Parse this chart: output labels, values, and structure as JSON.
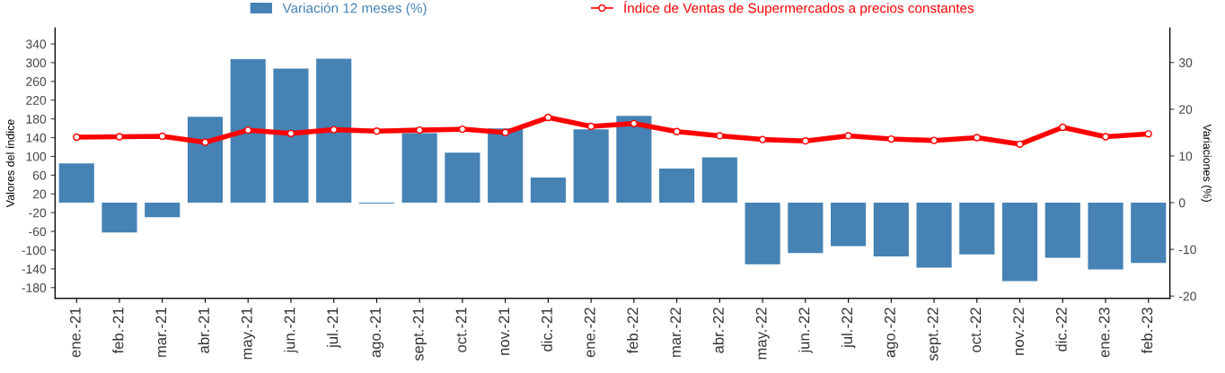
{
  "chart_data": {
    "type": "bar",
    "categories": [
      "ene.-21",
      "feb.-21",
      "mar.-21",
      "abr.-21",
      "may.-21",
      "jun.-21",
      "jul.-21",
      "ago.-21",
      "sept.-21",
      "oct.-21",
      "nov.-21",
      "dic.-21",
      "ene.-22",
      "feb.-22",
      "mar.-22",
      "abr.-22",
      "may.-22",
      "jun.-22",
      "jul.-22",
      "ago.-22",
      "sept.-22",
      "oct.-22",
      "nov.-22",
      "dic.-22",
      "ene.-23",
      "feb.-23"
    ],
    "series": [
      {
        "name": "Variación 12 meses (%)",
        "axis": "y2",
        "color": "#4682b4",
        "values": [
          8.4,
          -6.4,
          -3.1,
          18.4,
          30.7,
          28.7,
          30.8,
          -0.2,
          14.9,
          10.7,
          15.9,
          5.4,
          15.7,
          18.6,
          7.3,
          9.7,
          -13.2,
          -10.8,
          -9.3,
          -11.5,
          -13.9,
          -11.1,
          -16.8,
          -11.8,
          -14.3,
          -12.9
        ]
      },
      {
        "name": "Índice de Ventas de Supermercados a precios constantes",
        "type": "line",
        "axis": "y",
        "color": "#ff0000",
        "marker": "circle",
        "values": [
          141,
          142,
          143,
          130,
          156,
          149,
          157,
          154,
          156,
          158,
          151,
          183,
          164,
          170,
          153,
          144,
          136,
          133,
          144,
          137,
          134,
          140,
          126,
          162,
          142,
          148
        ]
      }
    ],
    "ylabel": "Valores del índice",
    "y2label": "Variaciones (%)",
    "ylim": [
      -203,
      374
    ],
    "yticks": [
      -180,
      -140,
      -100,
      -60,
      -20,
      20,
      60,
      100,
      140,
      180,
      220,
      260,
      300,
      340
    ],
    "y2lim": [
      -20.5,
      37.4
    ],
    "y2ticks": [
      -20,
      -10,
      0,
      10,
      20,
      30
    ],
    "legend": "top",
    "grid": false
  }
}
